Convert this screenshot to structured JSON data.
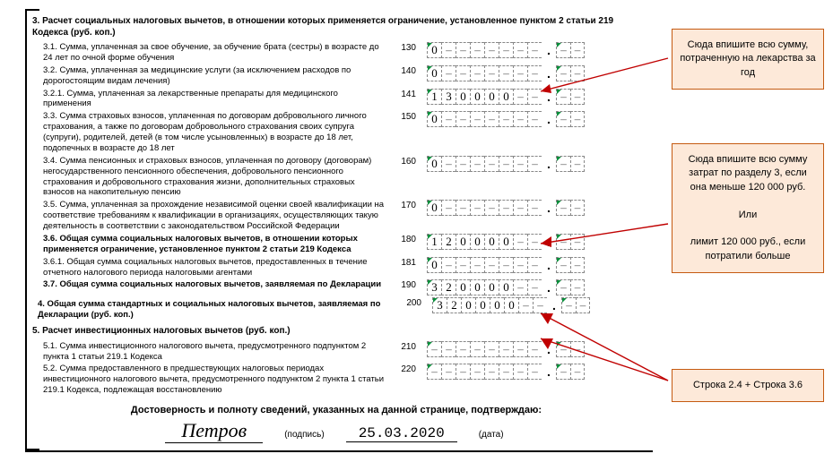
{
  "sections": {
    "s3_title": "3. Расчет социальных налоговых вычетов, в отношении которых применяется ограничение, установленное пунктом 2 статьи 219 Кодекса (руб. коп.)",
    "s4_title": "4. Общая сумма стандартных и социальных налоговых вычетов, заявляемая по Декларации (руб. коп.)",
    "s5_title": "5. Расчет инвестиционных налоговых вычетов (руб. коп.)"
  },
  "rows": {
    "r31": {
      "code": "130",
      "label": "3.1. Сумма, уплаченная за свое обучение, за обучение брата (сестры) в возрасте до 24 лет по очной форме обучения",
      "int": [
        "0",
        "",
        "",
        "",
        "",
        "",
        "",
        ""
      ],
      "kop": [
        "",
        ""
      ]
    },
    "r32": {
      "code": "140",
      "label": "3.2. Сумма, уплаченная за медицинские услуги (за исключением расходов по дорогостоящим видам лечения)",
      "int": [
        "0",
        "",
        "",
        "",
        "",
        "",
        "",
        ""
      ],
      "kop": [
        "",
        ""
      ]
    },
    "r321": {
      "code": "141",
      "label": "3.2.1. Сумма, уплаченная за лекарственные препараты для медицинского применения",
      "int": [
        "1",
        "3",
        "0",
        "0",
        "0",
        "0",
        "",
        ""
      ],
      "kop": [
        "",
        ""
      ]
    },
    "r33": {
      "code": "150",
      "label": "3.3. Сумма страховых взносов, уплаченная по договорам добровольного личного страхования, а также по договорам добровольного страхования своих супруга (супруги), родителей, детей (в том числе усыновленных) в возрасте до 18 лет, подопечных в возрасте до 18 лет",
      "int": [
        "0",
        "",
        "",
        "",
        "",
        "",
        "",
        ""
      ],
      "kop": [
        "",
        ""
      ]
    },
    "r34": {
      "code": "160",
      "label": "3.4. Сумма пенсионных и страховых взносов, уплаченная по договору (договорам) негосударственного пенсионного обеспечения, добровольного пенсионного страхования и добровольного страхования жизни, дополнительных страховых взносов на накопительную пенсию",
      "int": [
        "0",
        "",
        "",
        "",
        "",
        "",
        "",
        ""
      ],
      "kop": [
        "",
        ""
      ]
    },
    "r35": {
      "code": "170",
      "label": "3.5. Сумма, уплаченная за прохождение независимой оценки своей квалификации на соответствие требованиям к квалификации в организациях, осуществляющих такую деятельность в соответствии с законодательством Российской Федерации",
      "int": [
        "0",
        "",
        "",
        "",
        "",
        "",
        "",
        ""
      ],
      "kop": [
        "",
        ""
      ]
    },
    "r36": {
      "code": "180",
      "label": "3.6. Общая сумма социальных налоговых вычетов, в отношении которых применяется ограничение, установленное пунктом 2 статьи 219 Кодекса",
      "int": [
        "1",
        "2",
        "0",
        "0",
        "0",
        "0",
        "",
        ""
      ],
      "kop": [
        "",
        ""
      ],
      "bold": true
    },
    "r361": {
      "code": "181",
      "label": "3.6.1. Общая сумма социальных налоговых вычетов, предоставленных в течение отчетного налогового периода налоговыми агентами",
      "int": [
        "0",
        "",
        "",
        "",
        "",
        "",
        "",
        ""
      ],
      "kop": [
        "",
        ""
      ]
    },
    "r37": {
      "code": "190",
      "label": "3.7. Общая сумма социальных налоговых вычетов, заявляемая по Декларации",
      "int": [
        "3",
        "2",
        "0",
        "0",
        "0",
        "0",
        "",
        ""
      ],
      "kop": [
        "",
        ""
      ],
      "bold": true
    },
    "r4": {
      "code": "200",
      "int": [
        "3",
        "2",
        "0",
        "0",
        "0",
        "0",
        "",
        ""
      ],
      "kop": [
        "",
        ""
      ]
    },
    "r51": {
      "code": "210",
      "label": "5.1. Сумма инвестиционного налогового вычета, предусмотренного подпунктом 2 пункта 1 статьи 219.1 Кодекса",
      "int": [
        "",
        "",
        "",
        "",
        "",
        "",
        "",
        ""
      ],
      "kop": [
        "",
        ""
      ]
    },
    "r52": {
      "code": "220",
      "label": "5.2. Сумма предоставленного в предшествующих налоговых периодах инвестиционного налогового вычета, предусмотренного подпунктом 2 пункта 1 статьи 219.1 Кодекса, подлежащая восстановлению",
      "int": [
        "",
        "",
        "",
        "",
        "",
        "",
        "",
        ""
      ],
      "kop": [
        "",
        ""
      ]
    }
  },
  "signature": {
    "confirm": "Достоверность и полноту сведений, указанных на данной странице, подтверждаю:",
    "name": "Петров",
    "sig_label": "(подпись)",
    "date": "25.03.2020",
    "date_label": "(дата)"
  },
  "callouts": {
    "c1": "Сюда впишите всю сумму, потраченную на лекарства за год",
    "c2": "Сюда впишите всю сумму затрат по разделу 3, если она меньше 120 000 руб.\n\nИли\n\nлимит 120 000 руб., если потратили больше",
    "c3": "Строка 2.4 + Строка 3.6"
  },
  "dash": "–"
}
